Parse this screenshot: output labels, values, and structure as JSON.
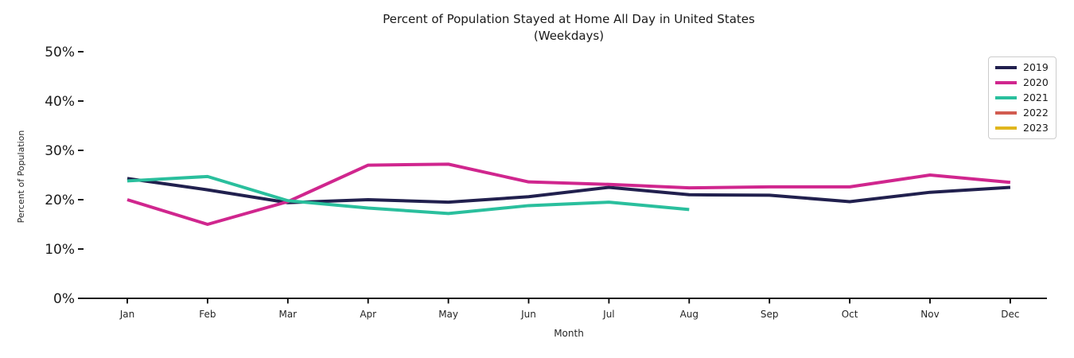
{
  "chart_data": {
    "type": "line",
    "title": "Percent of Population Stayed at Home All Day in United States",
    "subtitle": "(Weekdays)",
    "xlabel": "Month",
    "ylabel": "Percent of Population",
    "categories": [
      "Jan",
      "Feb",
      "Mar",
      "Apr",
      "May",
      "Jun",
      "Jul",
      "Aug",
      "Sep",
      "Oct",
      "Nov",
      "Dec"
    ],
    "ylim": [
      0,
      50
    ],
    "yticks": [
      0,
      10,
      20,
      30,
      40,
      50
    ],
    "ytick_labels": [
      "0%",
      "10%",
      "20%",
      "30%",
      "40%",
      "50%"
    ],
    "grid": false,
    "legend_position": "upper right",
    "axis_color": "#000000",
    "series": [
      {
        "name": "2019",
        "color": "#21204e",
        "values": [
          24.3,
          22.0,
          19.4,
          20.0,
          19.5,
          20.6,
          22.5,
          21.0,
          20.9,
          19.6,
          21.5,
          22.5
        ]
      },
      {
        "name": "2020",
        "color": "#d0268e",
        "values": [
          20.0,
          15.0,
          19.6,
          27.0,
          27.2,
          23.6,
          23.1,
          22.4,
          22.6,
          22.6,
          25.0,
          23.5
        ]
      },
      {
        "name": "2021",
        "color": "#2abf9d",
        "values": [
          23.8,
          24.7,
          19.8,
          18.3,
          17.2,
          18.8,
          19.5,
          18.0,
          null,
          null,
          null,
          null
        ]
      },
      {
        "name": "2022",
        "color": "#d25c50",
        "values": []
      },
      {
        "name": "2023",
        "color": "#e0b61e",
        "values": []
      }
    ]
  }
}
